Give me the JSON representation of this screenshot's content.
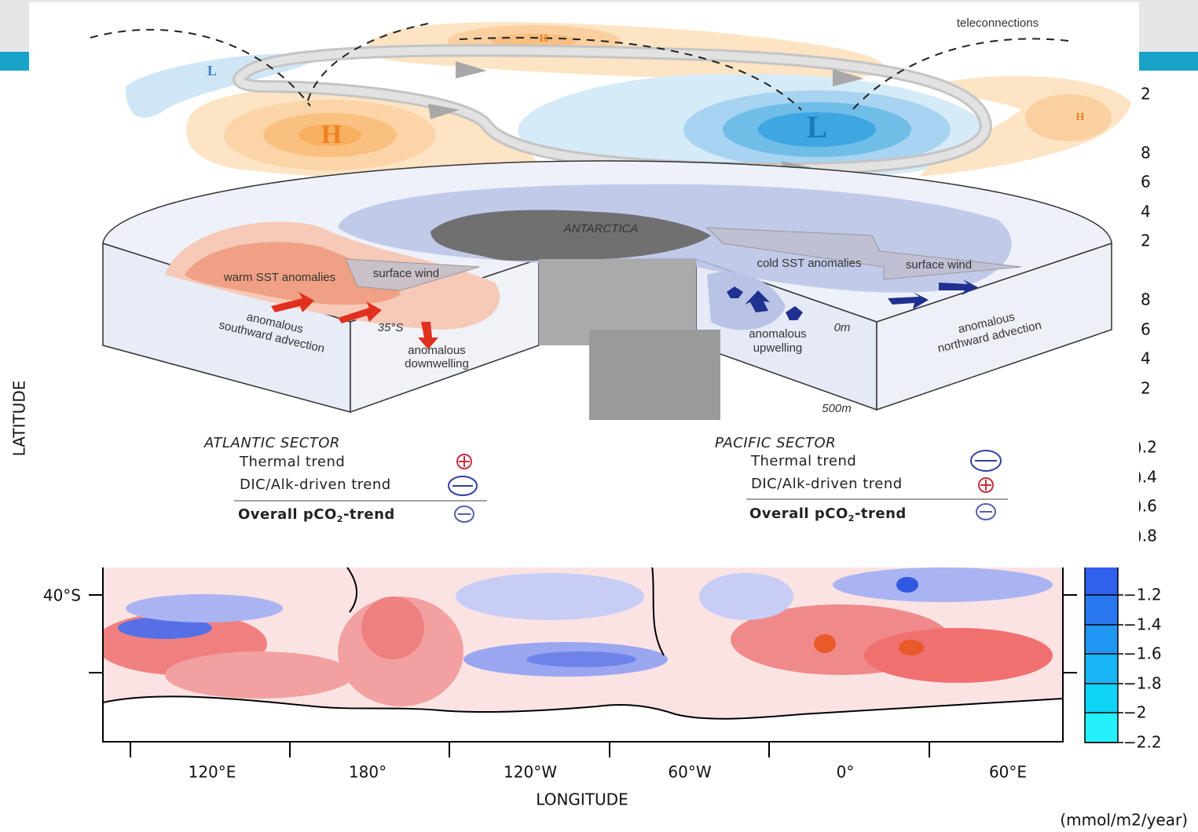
{
  "slide": {
    "side_labels": [
      "2",
      "8",
      "6",
      "4",
      "2",
      "8",
      "6",
      "4",
      "2",
      ").2",
      ").4",
      ").6",
      ").8"
    ],
    "unit": "(mmol/m2/year)"
  },
  "map": {
    "y_label": "LATITUDE",
    "x_label": "LONGITUDE",
    "y_ticks": [
      "40°S"
    ],
    "x_ticks": [
      "120°E",
      "180°",
      "120°W",
      "60°W",
      "0°",
      "60°E"
    ],
    "colorbar_labels": [
      "−1.2",
      "−1.4",
      "−1.6",
      "−1.8",
      "−2",
      "−2.2"
    ]
  },
  "diagram": {
    "teleconnections": "teleconnections",
    "pressure_centers": [
      "L",
      "H",
      "H",
      "L",
      "H"
    ],
    "continent": "ANTARCTICA",
    "atlantic": {
      "sst": "warm SST anomalies",
      "wind": "surface wind",
      "advection": [
        "anomalous",
        "southward advection"
      ],
      "latitude": "35°S",
      "vertical": [
        "anomalous",
        "downwelling"
      ]
    },
    "pacific": {
      "sst": "cold SST anomalies",
      "wind": "surface wind",
      "vertical": [
        "anomalous",
        "upwelling"
      ],
      "advection": [
        "anomalous",
        "northward advection"
      ]
    },
    "depths": [
      "0m",
      "500m"
    ],
    "legend": {
      "atlantic": {
        "title": "ATLANTIC SECTOR",
        "rows": [
          "Thermal trend",
          "DIC/Alk-driven trend"
        ],
        "overall": {
          "text": "Overall pCO",
          "sub": "2",
          "after": "-trend"
        }
      },
      "pacific": {
        "title": "PACIFIC SECTOR",
        "rows": [
          "Thermal trend",
          "DIC/Alk-driven trend"
        ],
        "overall": {
          "text": "Overall pCO",
          "sub": "2",
          "after": "-trend"
        }
      }
    }
  }
}
